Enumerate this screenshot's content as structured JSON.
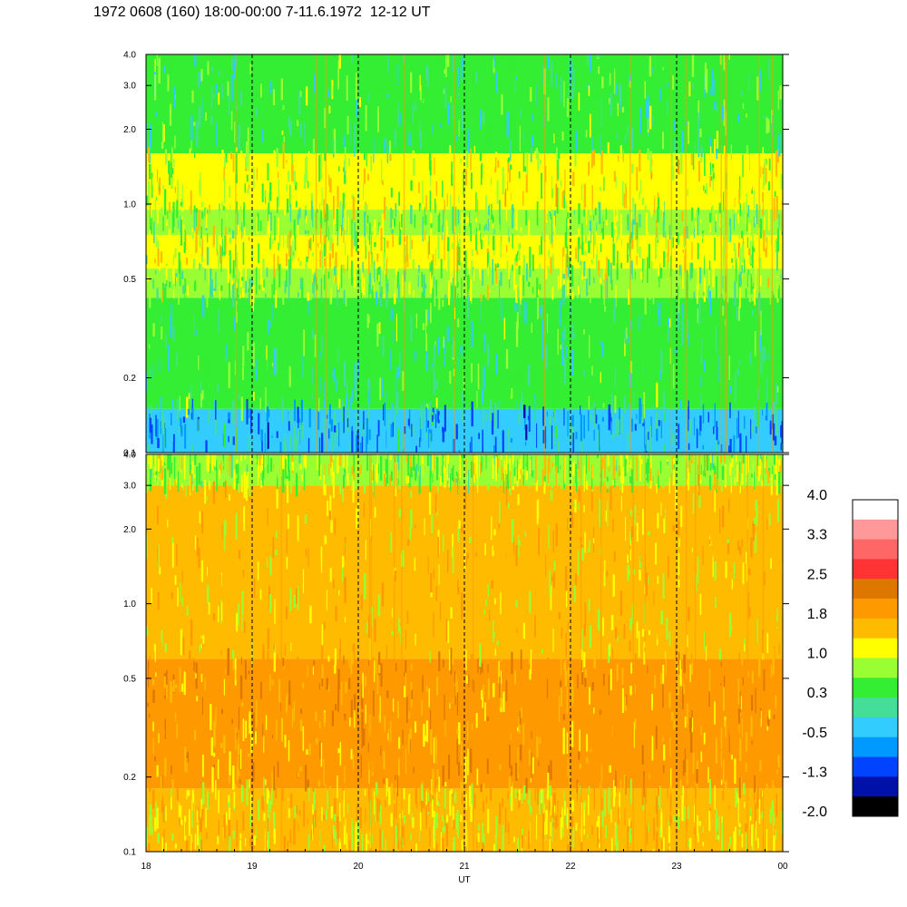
{
  "title": "1972 0608 (160) 18:00-00:00 7-11.6.1972  12-12 UT",
  "chart_data": [
    {
      "type": "heatmap",
      "panel": "upper",
      "y_scale": "log",
      "ylim": [
        0.1,
        4.0
      ],
      "y_ticks": [
        "0.1",
        "0.2",
        "0.5",
        "1.0",
        "2.0",
        "3.0",
        "4.0"
      ],
      "y_tick_values": [
        0.1,
        0.2,
        0.5,
        1.0,
        2.0,
        3.0,
        4.0
      ],
      "x_range_hours": [
        18,
        24
      ],
      "hour_markers": [
        19,
        20,
        21,
        22,
        23
      ],
      "bands": [
        {
          "y_from": 0.1,
          "y_to": 0.15,
          "level": -0.5
        },
        {
          "y_from": 0.15,
          "y_to": 0.42,
          "level": 0.3
        },
        {
          "y_from": 0.42,
          "y_to": 0.55,
          "level": 0.65
        },
        {
          "y_from": 0.55,
          "y_to": 0.75,
          "level": 1.0
        },
        {
          "y_from": 0.75,
          "y_to": 0.95,
          "level": 0.65
        },
        {
          "y_from": 0.95,
          "y_to": 1.6,
          "level": 1.0
        },
        {
          "y_from": 1.6,
          "y_to": 4.0,
          "level": 0.3
        }
      ]
    },
    {
      "type": "heatmap",
      "panel": "lower",
      "y_scale": "log",
      "ylim": [
        0.1,
        4.0
      ],
      "y_ticks": [
        "0.1",
        "0.2",
        "0.5",
        "1.0",
        "2.0",
        "3.0",
        "4.0"
      ],
      "y_tick_values": [
        0.1,
        0.2,
        0.5,
        1.0,
        2.0,
        3.0,
        4.0
      ],
      "x_ticks": [
        "18",
        "19",
        "20",
        "21",
        "22",
        "23",
        "00"
      ],
      "x_tick_values": [
        18,
        19,
        20,
        21,
        22,
        23,
        24
      ],
      "xlabel": "UT",
      "hour_markers": [
        19,
        20,
        21,
        22,
        23
      ],
      "bands": [
        {
          "y_from": 0.1,
          "y_to": 0.18,
          "level": 1.4
        },
        {
          "y_from": 0.18,
          "y_to": 0.6,
          "level": 1.8
        },
        {
          "y_from": 0.6,
          "y_to": 3.0,
          "level": 1.4
        },
        {
          "y_from": 3.0,
          "y_to": 4.0,
          "level": 0.9
        }
      ]
    }
  ],
  "colorbar": {
    "ticks": [
      "4.0",
      "3.3",
      "2.5",
      "1.8",
      "1.0",
      "0.3",
      "-0.5",
      "-1.3",
      "-2.0"
    ],
    "colors": [
      "#ffffff",
      "#ff9999",
      "#ff6666",
      "#ff3333",
      "#dd7700",
      "#ff9900",
      "#ffbb00",
      "#ffff00",
      "#99ff33",
      "#33ee33",
      "#44dd99",
      "#33ccff",
      "#0099ff",
      "#0044ff",
      "#0011aa",
      "#000000"
    ]
  }
}
